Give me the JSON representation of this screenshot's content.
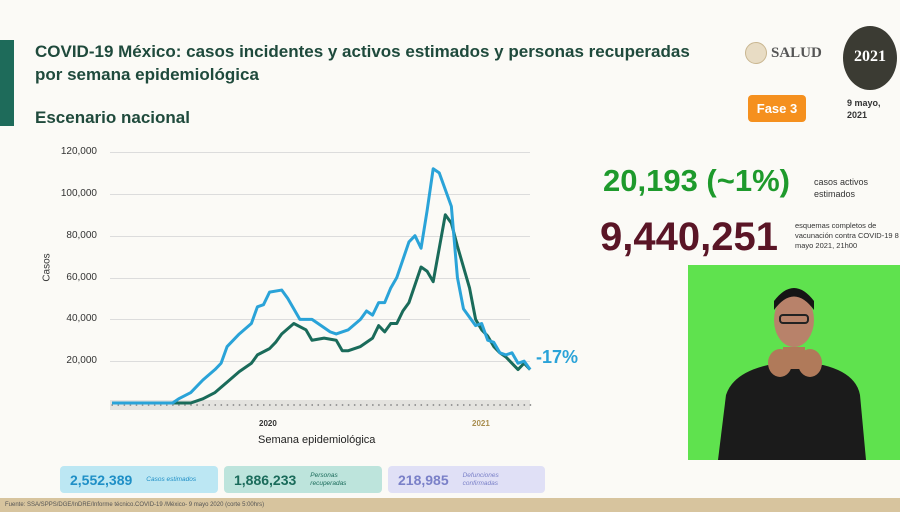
{
  "header": {
    "title": "COVID-19 México: casos incidentes y activos estimados y personas recuperadas por semana epidemiológica",
    "subtitle": "Escenario nacional",
    "logo_salud": "SALUD",
    "logo_2021": "2021",
    "phase": "Fase 3",
    "date": "9 mayo, 2021"
  },
  "highlights": {
    "active_value": "20,193 (~1%)",
    "active_label": "casos activos estimados",
    "vacc_value": "9,440,251",
    "vacc_label": "esquemas completos de vacunación contra COVID-19 8 mayo 2021, 21h00"
  },
  "stats": [
    {
      "value": "2,552,389",
      "label": "Casos estimados"
    },
    {
      "value": "1,886,233",
      "label": "Personas recuperadas"
    },
    {
      "value": "218,985",
      "label": "Defunciones confirmadas"
    }
  ],
  "footer": "Fuente: SSA/SPPS/DGE/InDRE/Informe técnico.COVID-19 /México- 9 mayo 2020 (corte 5:00hrs)",
  "colors": {
    "estimated": "#2aa3d8",
    "recovered": "#1a6b5a",
    "active": "#1e9a2c",
    "vacc": "#5a1526",
    "phase": "#f5901e",
    "video_bg": "#5fe24e"
  },
  "chart_data": {
    "type": "line",
    "xlabel": "Semana epidemiológica",
    "ylabel": "Casos",
    "ylim": [
      0,
      120000
    ],
    "yticks": [
      "120,000",
      "100,000",
      "80,000",
      "60,000",
      "40,000",
      "20,000"
    ],
    "year_labels": [
      "2020",
      "2021"
    ],
    "annotation": "-17%",
    "grid": true,
    "series": [
      {
        "color": "#2aa3d8",
        "points": [
          [
            0,
            0
          ],
          [
            10,
            0
          ],
          [
            11,
            2000
          ],
          [
            13,
            5000
          ],
          [
            15,
            11000
          ],
          [
            17,
            16000
          ],
          [
            18,
            19000
          ],
          [
            19,
            27000
          ],
          [
            21,
            33000
          ],
          [
            23,
            38000
          ],
          [
            24,
            46000
          ],
          [
            25,
            47000
          ],
          [
            26,
            53000
          ],
          [
            28,
            54000
          ],
          [
            29,
            50000
          ],
          [
            31,
            40000
          ],
          [
            33,
            40000
          ],
          [
            34,
            38000
          ],
          [
            36,
            34000
          ],
          [
            37,
            33000
          ],
          [
            39,
            35000
          ],
          [
            41,
            40000
          ],
          [
            42,
            44000
          ],
          [
            43,
            42000
          ],
          [
            44,
            48000
          ],
          [
            45,
            48000
          ],
          [
            46,
            55000
          ],
          [
            47,
            60000
          ],
          [
            49,
            77000
          ],
          [
            50,
            80000
          ],
          [
            51,
            74000
          ],
          [
            52,
            92000
          ],
          [
            53,
            112000
          ],
          [
            54,
            110000
          ],
          [
            56,
            94000
          ],
          [
            57,
            60000
          ],
          [
            58,
            45000
          ],
          [
            59,
            41000
          ],
          [
            60,
            37000
          ],
          [
            61,
            38000
          ],
          [
            62,
            30000
          ],
          [
            63,
            29000
          ],
          [
            64,
            24000
          ],
          [
            65,
            23000
          ],
          [
            66,
            24000
          ],
          [
            67,
            19000
          ],
          [
            68,
            20000
          ],
          [
            69,
            16000
          ]
        ]
      },
      {
        "color": "#1a6b5a",
        "points": [
          [
            0,
            0
          ],
          [
            13,
            0
          ],
          [
            15,
            2000
          ],
          [
            17,
            5000
          ],
          [
            19,
            10000
          ],
          [
            21,
            15000
          ],
          [
            23,
            19000
          ],
          [
            24,
            23000
          ],
          [
            26,
            26000
          ],
          [
            27,
            29000
          ],
          [
            28,
            33000
          ],
          [
            30,
            38000
          ],
          [
            32,
            35000
          ],
          [
            33,
            30000
          ],
          [
            35,
            31000
          ],
          [
            37,
            30000
          ],
          [
            38,
            25000
          ],
          [
            39,
            25000
          ],
          [
            41,
            27000
          ],
          [
            43,
            31000
          ],
          [
            44,
            37000
          ],
          [
            45,
            34000
          ],
          [
            46,
            38000
          ],
          [
            47,
            38000
          ],
          [
            48,
            44000
          ],
          [
            49,
            48000
          ],
          [
            51,
            65000
          ],
          [
            52,
            63000
          ],
          [
            53,
            58000
          ],
          [
            55,
            90000
          ],
          [
            56,
            86000
          ],
          [
            57,
            75000
          ],
          [
            59,
            55000
          ],
          [
            60,
            40000
          ],
          [
            61,
            35000
          ],
          [
            62,
            32000
          ],
          [
            63,
            27000
          ],
          [
            64,
            24000
          ],
          [
            65,
            22000
          ],
          [
            67,
            16000
          ],
          [
            68,
            19000
          ],
          [
            69,
            16000
          ]
        ]
      }
    ]
  }
}
